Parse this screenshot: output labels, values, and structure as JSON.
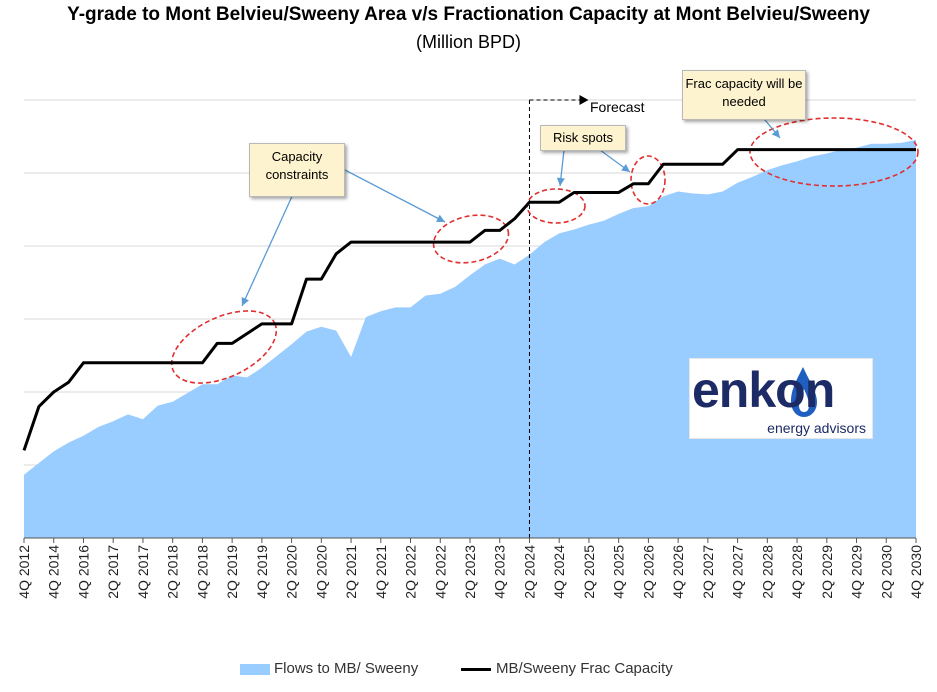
{
  "title": "Y-grade to Mont Belvieu/Sweeny Area v/s Fractionation Capacity at Mont Belvieu/Sweeny",
  "subtitle": "(Million BPD)",
  "forecast_label": "Forecast",
  "callouts": {
    "capacity": "Capacity constraints",
    "risk": "Risk spots",
    "frac": "Frac capacity will be needed"
  },
  "logo": {
    "word": "enkon",
    "tagline": "energy advisors",
    "brand_color": "#1c2a66",
    "flame_color": "#1f5fbf"
  },
  "colors": {
    "area": "#99ccff",
    "line": "#000000",
    "grid": "#d9d9d9",
    "highlight": "#e03030",
    "arrow": "#5b9bd5"
  },
  "chart_data": {
    "type": "area",
    "title": "Y-grade to Mont Belvieu/Sweeny Area v/s Fractionation Capacity at Mont Belvieu/Sweeny",
    "subtitle": "(Million BPD)",
    "x_tick_labels": [
      "4Q 2012",
      "4Q 2014",
      "4Q 2016",
      "2Q 2017",
      "4Q 2017",
      "2Q 2018",
      "4Q 2018",
      "2Q 2019",
      "4Q 2019",
      "2Q 2020",
      "4Q 2020",
      "2Q 2021",
      "4Q 2021",
      "2Q 2022",
      "4Q 2022",
      "2Q 2023",
      "4Q 2023",
      "2Q 2024",
      "4Q 2024",
      "2Q 2025",
      "4Q 2025",
      "2Q 2026",
      "4Q 2026",
      "2Q 2027",
      "4Q 2027",
      "2Q 2028",
      "4Q 2028",
      "2Q 2029",
      "4Q 2029",
      "2Q 2030",
      "4Q 2030"
    ],
    "forecast_start": "2Q 2024",
    "y_axis_labels_shown": false,
    "grid": true,
    "legend_position": "bottom",
    "series": [
      {
        "name": "Flows to MB/ Sweeny",
        "type": "area",
        "x": [
          0,
          0.5,
          1,
          1.5,
          2,
          2.5,
          3,
          3.5,
          4,
          4.5,
          5,
          5.5,
          6,
          6.5,
          7,
          7.5,
          8,
          8.5,
          9,
          9.5,
          10,
          10.5,
          11,
          11.5,
          12,
          12.5,
          13,
          13.5,
          14,
          14.5,
          15,
          15.5,
          16,
          16.5,
          17,
          17.5,
          18,
          18.5,
          19,
          19.5,
          20,
          20.5,
          21,
          21.5,
          22,
          22.5,
          23,
          23.5,
          24,
          24.5,
          25,
          25.5,
          26,
          26.5,
          27,
          27.5,
          28,
          28.5,
          29,
          29.5,
          30
        ],
        "values": [
          0.65,
          0.77,
          0.89,
          0.98,
          1.05,
          1.14,
          1.2,
          1.27,
          1.22,
          1.36,
          1.4,
          1.49,
          1.58,
          1.58,
          1.67,
          1.65,
          1.75,
          1.87,
          1.99,
          2.12,
          2.17,
          2.13,
          1.86,
          2.27,
          2.33,
          2.37,
          2.37,
          2.49,
          2.51,
          2.58,
          2.7,
          2.81,
          2.87,
          2.81,
          2.91,
          3.04,
          3.13,
          3.17,
          3.22,
          3.26,
          3.33,
          3.39,
          3.41,
          3.51,
          3.56,
          3.54,
          3.53,
          3.56,
          3.65,
          3.71,
          3.78,
          3.83,
          3.87,
          3.92,
          3.95,
          3.99,
          4.01,
          4.05,
          4.05,
          4.06,
          4.09
        ]
      },
      {
        "name": "MB/Sweeny Frac Capacity",
        "type": "line",
        "x": [
          0,
          0.5,
          1,
          1.5,
          2,
          2.5,
          3,
          3.5,
          4,
          4.5,
          5,
          5.5,
          6,
          6.5,
          7,
          7.5,
          8,
          8.5,
          9,
          9.5,
          10,
          10.5,
          11,
          11.5,
          12,
          12.5,
          13,
          13.5,
          14,
          14.5,
          15,
          15.5,
          16,
          16.5,
          17,
          17.5,
          18,
          18.5,
          19,
          19.5,
          20,
          20.5,
          21,
          21.5,
          22,
          22.5,
          23,
          23.5,
          24,
          24.5,
          25,
          25.5,
          26,
          26.5,
          27,
          27.5,
          28,
          28.5,
          29,
          29.5,
          30
        ],
        "values": [
          0.9,
          1.35,
          1.5,
          1.6,
          1.8,
          1.8,
          1.8,
          1.8,
          1.8,
          1.8,
          1.8,
          1.8,
          1.8,
          2.0,
          2.0,
          2.1,
          2.2,
          2.2,
          2.2,
          2.66,
          2.66,
          2.92,
          3.04,
          3.04,
          3.04,
          3.04,
          3.04,
          3.04,
          3.04,
          3.04,
          3.04,
          3.16,
          3.16,
          3.28,
          3.45,
          3.45,
          3.45,
          3.55,
          3.55,
          3.55,
          3.55,
          3.64,
          3.64,
          3.84,
          3.84,
          3.84,
          3.84,
          3.84,
          3.99,
          3.99,
          3.99,
          3.99,
          3.99,
          3.99,
          3.99,
          3.99,
          3.99,
          3.99,
          3.99,
          3.99,
          3.99
        ]
      }
    ]
  }
}
